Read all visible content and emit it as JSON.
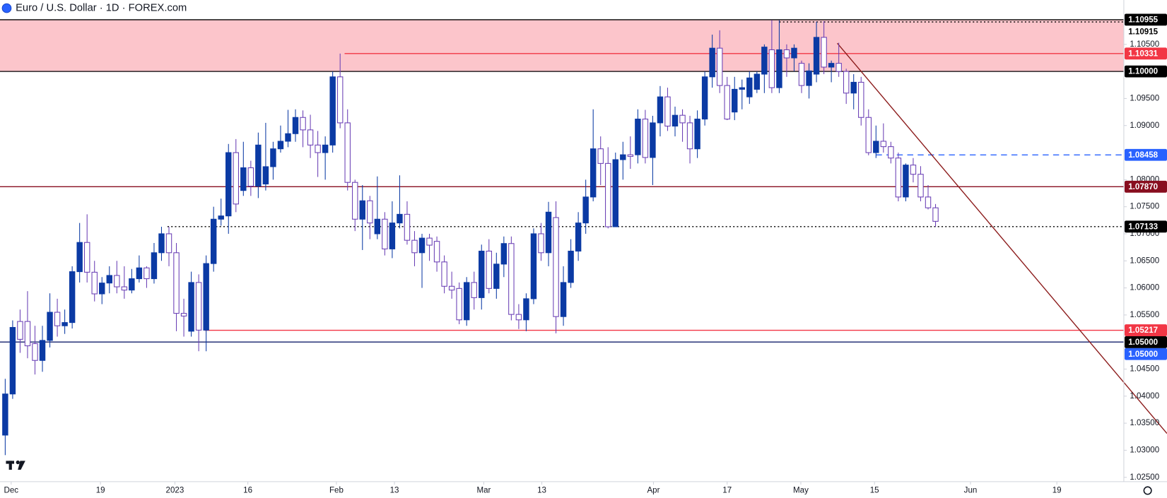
{
  "chart_data": {
    "type": "candlestick",
    "title": "Euro / U.S. Dollar · 1D · FOREX.com",
    "up_color": "#0b3aa4",
    "down_color": "#ffffff",
    "down_border": "#6a3fb5",
    "ohlc": [
      [
        1.0328,
        1.0432,
        1.0291,
        1.0404
      ],
      [
        1.0404,
        1.054,
        1.0395,
        1.0527
      ],
      [
        1.0538,
        1.056,
        1.048,
        1.0505
      ],
      [
        1.0538,
        1.0594,
        1.047,
        1.0493
      ],
      [
        1.0497,
        1.053,
        1.044,
        1.0466
      ],
      [
        1.0466,
        1.053,
        1.0445,
        1.0503
      ],
      [
        1.0503,
        1.059,
        1.049,
        1.0555
      ],
      [
        1.0555,
        1.058,
        1.051,
        1.053
      ],
      [
        1.053,
        1.056,
        1.0515,
        1.0536
      ],
      [
        1.0536,
        1.064,
        1.0525,
        1.063
      ],
      [
        1.063,
        1.072,
        1.061,
        1.0684
      ],
      [
        1.0684,
        1.0736,
        1.061,
        1.0629
      ],
      [
        1.0629,
        1.065,
        1.0575,
        1.0589
      ],
      [
        1.0589,
        1.062,
        1.057,
        1.0609
      ],
      [
        1.0609,
        1.064,
        1.059,
        1.0623
      ],
      [
        1.0623,
        1.065,
        1.059,
        1.0602
      ],
      [
        1.0602,
        1.064,
        1.058,
        1.0596
      ],
      [
        1.0596,
        1.0635,
        1.059,
        1.0617
      ],
      [
        1.0617,
        1.066,
        1.061,
        1.0637
      ],
      [
        1.0637,
        1.064,
        1.06,
        1.0617
      ],
      [
        1.0617,
        1.0683,
        1.0608,
        1.0665
      ],
      [
        1.0665,
        1.0713,
        1.065,
        1.07
      ],
      [
        1.07,
        1.0713,
        1.064,
        1.0665
      ],
      [
        1.0665,
        1.0683,
        1.052,
        1.0553
      ],
      [
        1.0553,
        1.058,
        1.051,
        1.0548
      ],
      [
        1.052,
        1.063,
        1.051,
        1.061
      ],
      [
        1.061,
        1.0625,
        1.0483,
        1.0522
      ],
      [
        1.0522,
        1.066,
        1.0483,
        1.0645
      ],
      [
        1.0645,
        1.075,
        1.063,
        1.0727
      ],
      [
        1.0727,
        1.0765,
        1.0715,
        1.0733
      ],
      [
        1.0733,
        1.0866,
        1.07,
        1.085
      ],
      [
        1.085,
        1.0875,
        1.074,
        1.0755
      ],
      [
        1.078,
        1.087,
        1.077,
        1.0822
      ],
      [
        1.0822,
        1.0835,
        1.077,
        1.0788
      ],
      [
        1.0788,
        1.0887,
        1.0766,
        1.0864
      ],
      [
        1.0792,
        1.0905,
        1.078,
        1.0824
      ],
      [
        1.0824,
        1.087,
        1.08,
        1.0857
      ],
      [
        1.0857,
        1.09,
        1.085,
        1.0871
      ],
      [
        1.0871,
        1.0929,
        1.086,
        1.0885
      ],
      [
        1.0885,
        1.093,
        1.087,
        1.0915
      ],
      [
        1.0915,
        1.0928,
        1.086,
        1.0892
      ],
      [
        1.0892,
        1.092,
        1.084,
        1.0864
      ],
      [
        1.0864,
        1.089,
        1.0805,
        1.085
      ],
      [
        1.085,
        1.088,
        1.08,
        1.0864
      ],
      [
        1.0864,
        1.1,
        1.085,
        1.099
      ],
      [
        1.099,
        1.1033,
        1.0895,
        1.0905
      ],
      [
        1.0905,
        1.093,
        1.078,
        1.0795
      ],
      [
        1.0795,
        1.08,
        1.0705,
        1.0727
      ],
      [
        1.0727,
        1.079,
        1.067,
        1.0761
      ],
      [
        1.0761,
        1.077,
        1.069,
        1.072
      ],
      [
        1.07,
        1.0806,
        1.069,
        1.0727
      ],
      [
        1.0727,
        1.074,
        1.066,
        1.0672
      ],
      [
        1.0672,
        1.076,
        1.0655,
        1.072
      ],
      [
        1.072,
        1.0808,
        1.071,
        1.0736
      ],
      [
        1.0736,
        1.076,
        1.068,
        1.0688
      ],
      [
        1.0688,
        1.0705,
        1.064,
        1.0665
      ],
      [
        1.0665,
        1.07,
        1.06,
        1.0692
      ],
      [
        1.0692,
        1.07,
        1.065,
        1.0679
      ],
      [
        1.0686,
        1.0695,
        1.063,
        1.0648
      ],
      [
        1.0648,
        1.066,
        1.059,
        1.0603
      ],
      [
        1.0603,
        1.063,
        1.058,
        1.0596
      ],
      [
        1.0599,
        1.061,
        1.0533,
        1.0541
      ],
      [
        1.0541,
        1.062,
        1.053,
        1.061
      ],
      [
        1.061,
        1.063,
        1.056,
        1.0582
      ],
      [
        1.0582,
        1.068,
        1.056,
        1.0668
      ],
      [
        1.0668,
        1.069,
        1.059,
        1.0599
      ],
      [
        1.0599,
        1.0665,
        1.058,
        1.0644
      ],
      [
        1.0644,
        1.0695,
        1.062,
        1.0682
      ],
      [
        1.0682,
        1.0695,
        1.054,
        1.0551
      ],
      [
        1.0551,
        1.057,
        1.0524,
        1.0541
      ],
      [
        1.0541,
        1.059,
        1.052,
        1.058
      ],
      [
        1.058,
        1.071,
        1.057,
        1.07
      ],
      [
        1.07,
        1.072,
        1.065,
        1.0665
      ],
      [
        1.0665,
        1.0759,
        1.064,
        1.074
      ],
      [
        1.073,
        1.076,
        1.0516,
        1.0547
      ],
      [
        1.0547,
        1.064,
        1.053,
        1.061
      ],
      [
        1.061,
        1.069,
        1.06,
        1.0668
      ],
      [
        1.0668,
        1.074,
        1.065,
        1.072
      ],
      [
        1.072,
        1.08,
        1.07,
        1.0768
      ],
      [
        1.0768,
        1.093,
        1.076,
        1.0857
      ],
      [
        1.0857,
        1.088,
        1.079,
        1.083
      ],
      [
        1.083,
        1.086,
        1.071,
        1.0713
      ],
      [
        1.0713,
        1.085,
        1.0713,
        1.0837
      ],
      [
        1.0837,
        1.087,
        1.08,
        1.0846
      ],
      [
        1.0846,
        1.088,
        1.082,
        1.0843
      ],
      [
        1.0846,
        1.093,
        1.083,
        1.0912
      ],
      [
        1.0912,
        1.0929,
        1.083,
        1.0841
      ],
      [
        1.0841,
        1.0918,
        1.079,
        1.0905
      ],
      [
        1.0905,
        1.0973,
        1.088,
        1.0953
      ],
      [
        1.0953,
        1.097,
        1.089,
        1.0899
      ],
      [
        1.0899,
        1.0935,
        1.088,
        1.0919
      ],
      [
        1.0919,
        1.093,
        1.087,
        1.0905
      ],
      [
        1.0905,
        1.0918,
        1.083,
        1.0857
      ],
      [
        1.0857,
        1.0928,
        1.084,
        1.0912
      ],
      [
        1.0912,
        1.1,
        1.09,
        1.099
      ],
      [
        1.099,
        1.1068,
        1.097,
        1.1043
      ],
      [
        1.1043,
        1.1076,
        1.096,
        1.0974
      ],
      [
        1.0974,
        1.099,
        1.091,
        1.0912
      ],
      [
        1.0925,
        1.099,
        1.091,
        1.0967
      ],
      [
        1.0967,
        1.0985,
        1.093,
        1.097
      ],
      [
        1.0953,
        1.1,
        1.094,
        1.0988
      ],
      [
        1.0967,
        1.1,
        1.096,
        1.0995
      ],
      [
        1.0995,
        1.105,
        1.096,
        1.1045
      ],
      [
        1.104,
        1.1095,
        1.096,
        1.097
      ],
      [
        1.097,
        1.1095,
        1.096,
        1.104
      ],
      [
        1.104,
        1.105,
        1.099,
        1.1025
      ],
      [
        1.1025,
        1.105,
        1.1,
        1.1043
      ],
      [
        1.1015,
        1.102,
        1.096,
        1.0974
      ],
      [
        1.0974,
        1.1015,
        1.095,
        1.1001
      ],
      [
        1.0995,
        1.1092,
        1.098,
        1.1063
      ],
      [
        1.1063,
        1.1093,
        1.0995,
        1.1008
      ],
      [
        1.1008,
        1.102,
        1.098,
        1.1015
      ],
      [
        1.1015,
        1.1053,
        1.099,
        1.1
      ],
      [
        1.1,
        1.1005,
        1.094,
        1.096
      ],
      [
        1.096,
        1.0995,
        1.093,
        1.098
      ],
      [
        1.098,
        1.099,
        1.09,
        1.0915
      ],
      [
        1.0915,
        1.093,
        1.0845,
        1.085
      ],
      [
        1.085,
        1.09,
        1.084,
        1.0871
      ],
      [
        1.0871,
        1.0904,
        1.085,
        1.0861
      ],
      [
        1.0861,
        1.087,
        1.083,
        1.084
      ],
      [
        1.084,
        1.085,
        1.076,
        1.0768
      ],
      [
        1.0768,
        1.083,
        1.076,
        1.0827
      ],
      [
        1.0827,
        1.084,
        1.0795,
        1.081
      ],
      [
        1.081,
        1.0825,
        1.076,
        1.0768
      ],
      [
        1.0768,
        1.079,
        1.0745,
        1.0748
      ],
      [
        1.0748,
        1.0755,
        1.0713,
        1.0723
      ]
    ],
    "xlim": [
      -0.7,
      150.3
    ],
    "xticks": [
      {
        "value": 0.8,
        "label": "Dec"
      },
      {
        "value": 12.8,
        "label": "19"
      },
      {
        "value": 22.8,
        "label": "2023"
      },
      {
        "value": 32.6,
        "label": "16"
      },
      {
        "value": 44.5,
        "label": "Feb"
      },
      {
        "value": 52.3,
        "label": "13"
      },
      {
        "value": 64.3,
        "label": "Mar"
      },
      {
        "value": 72.1,
        "label": "13"
      },
      {
        "value": 87.1,
        "label": "Apr"
      },
      {
        "value": 97,
        "label": "17"
      },
      {
        "value": 106.9,
        "label": "May"
      },
      {
        "value": 116.8,
        "label": "15"
      },
      {
        "value": 129.7,
        "label": "Jun"
      },
      {
        "value": 141.3,
        "label": "19"
      }
    ],
    "ylim": [
      1.0242,
      1.1132
    ],
    "yticks": [
      {
        "value": 1.025,
        "label": "1.02500"
      },
      {
        "value": 1.03,
        "label": "1.03000"
      },
      {
        "value": 1.035,
        "label": "1.03500"
      },
      {
        "value": 1.04,
        "label": "1.04000"
      },
      {
        "value": 1.045,
        "label": "1.04500"
      },
      {
        "value": 1.055,
        "label": "1.05500"
      },
      {
        "value": 1.06,
        "label": "1.06000"
      },
      {
        "value": 1.065,
        "label": "1.06500"
      },
      {
        "value": 1.07,
        "label": "1.07000"
      },
      {
        "value": 1.075,
        "label": "1.07500"
      },
      {
        "value": 1.08,
        "label": "1.08000"
      },
      {
        "value": 1.09,
        "label": "1.09000"
      },
      {
        "value": 1.095,
        "label": "1.09500"
      },
      {
        "value": 1.105,
        "label": "1.10500"
      }
    ],
    "zone": {
      "range": [
        1.1,
        1.10955
      ],
      "color": "#fcc5cb"
    },
    "levels": [
      {
        "value": 1.10955,
        "label": "1.10955",
        "color": "#000000",
        "style": "solid",
        "start": null,
        "badge": "#000000",
        "text_color": "#ffffff"
      },
      {
        "value": 1.10915,
        "label": "1.10915",
        "color": "#000000",
        "style": "dotted",
        "start": 104,
        "badge": "#ffffff",
        "text_color": "#000000"
      },
      {
        "value": 1.10331,
        "label": "1.10331",
        "color": "#f23645",
        "style": "solid",
        "start": 45.6,
        "badge": "#f23645",
        "text_color": "#ffffff"
      },
      {
        "value": 1.1,
        "label": "1.10000",
        "color": "#000000",
        "style": "solid",
        "start": null,
        "badge": "#000000",
        "text_color": "#ffffff"
      },
      {
        "value": 1.08458,
        "label": "1.08458",
        "color": "#2962ff",
        "style": "dashed",
        "start": 117,
        "badge": "#2962ff",
        "text_color": "#ffffff"
      },
      {
        "value": 1.0787,
        "label": "1.07870",
        "color": "#880e1f",
        "style": "solid",
        "start": null,
        "badge": "#880e1f",
        "text_color": "#ffffff"
      },
      {
        "value": 1.07133,
        "label": "1.07133",
        "color": "#000000",
        "style": "dotted",
        "start": 21.8,
        "badge": "#000000",
        "text_color": "#ffffff"
      },
      {
        "value": 1.05217,
        "label": "1.05217",
        "color": "#f23645",
        "style": "solid",
        "start": 26.8,
        "badge": "#f23645",
        "text_color": "#ffffff"
      },
      {
        "value": 1.05,
        "label": "1.05000",
        "color": "#131f6b",
        "style": "solid",
        "start": null,
        "badge": "#000000",
        "text_color": "#ffffff"
      },
      {
        "value": 1.05,
        "label": "1.05000",
        "color": "#2962ff",
        "style": "none",
        "start": null,
        "badge": "#2962ff",
        "text_color": "#ffffff"
      }
    ],
    "trendline": {
      "points": [
        [
          111.8,
          1.10522
        ],
        [
          156.1,
          1.0331
        ]
      ],
      "color": "#8b1a1a"
    }
  }
}
